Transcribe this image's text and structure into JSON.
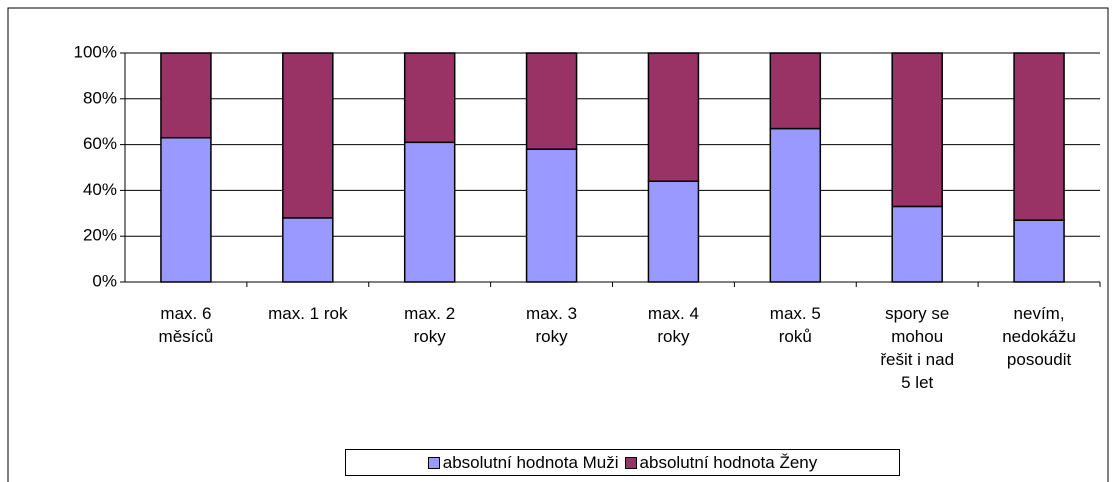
{
  "chart_data": {
    "type": "stacked_bar_percent",
    "categories": [
      "max. 6 měsíců",
      "max. 1 rok",
      "max. 2 roky",
      "max. 3 roky",
      "max. 4 roky",
      "max. 5 roků",
      "spory se mohou řešit i nad 5 let",
      "nevím, nedokážu posoudit"
    ],
    "series": [
      {
        "name": "absolutní hodnota Muži",
        "color": "#9999ff",
        "values": [
          63,
          28,
          61,
          58,
          44,
          67,
          33,
          27
        ]
      },
      {
        "name": "absolutní hodnota Ženy",
        "color": "#993366",
        "values": [
          37,
          72,
          39,
          42,
          56,
          33,
          67,
          73
        ]
      }
    ],
    "ylim": [
      0,
      100
    ],
    "yticks": [
      {
        "value": 0,
        "label": "0%"
      },
      {
        "value": 20,
        "label": "20%"
      },
      {
        "value": 40,
        "label": "40%"
      },
      {
        "value": 60,
        "label": "60%"
      },
      {
        "value": 80,
        "label": "80%"
      },
      {
        "value": 100,
        "label": "100%"
      }
    ],
    "grid": true,
    "legend": "bottom"
  }
}
